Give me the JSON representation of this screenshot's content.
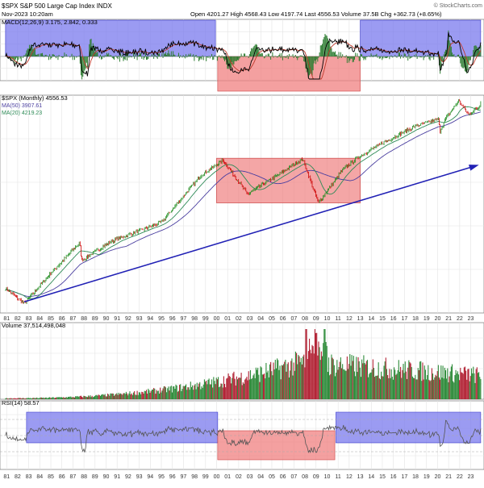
{
  "header": {
    "title": "$SPX S&P 500 Large Cap Index INDX",
    "date": "Nov-2023 10:20am",
    "ohlc_line": "Open 4201.27  High 4568.43  Low 4197.74  Last 4556.53  Volume 37.5B  Chg +362.73 (+8.65%)",
    "watermark": "© StockCharts.com"
  },
  "macd": {
    "legend": "MACD(12,26,9) 3.175, 2.842, 0.333",
    "colors": {
      "macd": "#000000",
      "signal": "#c0392b",
      "hist": "#2e7d32",
      "bull_box": "#7a7aee",
      "bear_box": "#f08080"
    }
  },
  "price": {
    "legend_main": "$SPX (Monthly) 4556.53",
    "legend_ma50": "MA(50) 3907.61",
    "legend_ma20": "MA(20) 4219.23",
    "colors": {
      "up": "#1a8a1a",
      "down": "#cc0000",
      "ma50": "#4b3fa0",
      "ma20": "#2e8b57",
      "trend": "#2121b5",
      "box": "#f08080"
    }
  },
  "volume": {
    "legend": "Volume 37,514,498,048",
    "colors": {
      "up": "#2e8b3a",
      "down": "#b22234"
    }
  },
  "rsi": {
    "legend": "RSI(14) 58.57",
    "colors": {
      "line": "#555555",
      "bull_box": "#7a7aee",
      "bear_box": "#f08080"
    }
  },
  "chart_data": {
    "type": "line",
    "title": "$SPX S&P 500 Large Cap Index INDX",
    "x_tick_labels": [
      "81",
      "82",
      "83",
      "84",
      "85",
      "86",
      "87",
      "88",
      "89",
      "90",
      "91",
      "92",
      "93",
      "94",
      "95",
      "96",
      "97",
      "98",
      "99",
      "00",
      "01",
      "02",
      "03",
      "04",
      "05",
      "06",
      "07",
      "08",
      "09",
      "10",
      "11",
      "12",
      "13",
      "14",
      "15",
      "16",
      "17",
      "18",
      "19",
      "20",
      "21",
      "22",
      "23"
    ],
    "series": [
      {
        "name": "$SPX (Monthly)",
        "x": [
          1980.9,
          1982.6,
          1985.0,
          1987.6,
          1987.8,
          1990.5,
          1995.0,
          1998.6,
          2000.6,
          2002.8,
          2007.8,
          2009.2,
          2011.5,
          2013.0,
          2015.0,
          2018.0,
          2020.1,
          2020.2,
          2020.7,
          2021.9,
          2022.8,
          2023.8,
          2023.9
        ],
        "y": [
          135,
          102,
          180,
          320,
          230,
          330,
          470,
          1150,
          1520,
          800,
          1560,
          680,
          1300,
          1650,
          2100,
          2900,
          3300,
          2600,
          3300,
          4700,
          3600,
          4200,
          4556
        ]
      }
    ],
    "ma50_last": 3907.61,
    "ma20_last": 4219.23,
    "volume_last": 37514498048,
    "rsi_last": 58.57,
    "macd_last": {
      "macd": 3.175,
      "signal": 2.842,
      "histogram": 0.333
    },
    "macd_bull_periods": [
      [
        1980.9,
        1999.9
      ],
      [
        2013.0,
        2023.9
      ]
    ],
    "macd_bear_periods": [
      [
        2000.1,
        2013.0
      ]
    ],
    "price_highlight_box": {
      "x": [
        2000.0,
        2013.0
      ],
      "y": [
        680,
        1580
      ]
    },
    "rsi_bull_periods": [
      [
        1982.8,
        2000.1
      ],
      [
        2010.8,
        2023.9
      ]
    ],
    "rsi_bear_periods": [
      [
        2000.1,
        2010.7
      ]
    ],
    "trendline": {
      "x": [
        1982.6,
        2023.9
      ],
      "y": [
        105,
        1370
      ]
    },
    "grid": true,
    "legend": "top-left"
  }
}
